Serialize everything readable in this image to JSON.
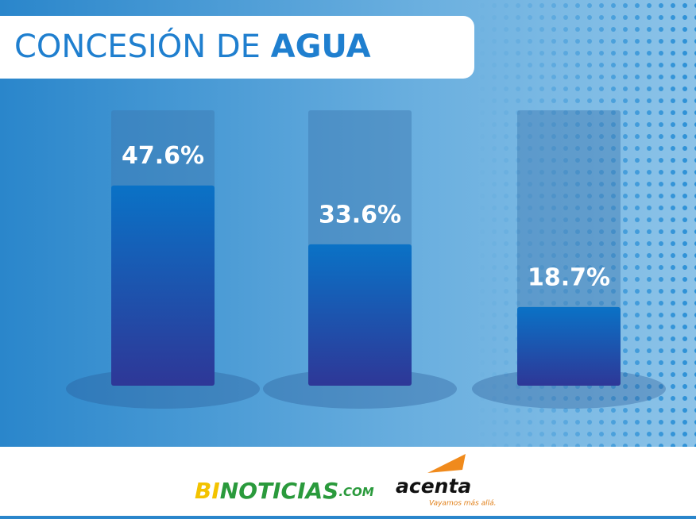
{
  "chart_data": {
    "type": "bar",
    "title_parts": [
      "CONCESIÓN DE",
      "AGUA"
    ],
    "values": [
      47.6,
      33.6,
      18.7
    ],
    "value_labels": [
      "47.6%",
      "33.6%",
      "18.7%"
    ],
    "color_top": "#0a72c6",
    "color_bottom": "#2e3797"
  },
  "footer": {
    "logo_1": [
      "BI",
      "NOTICIAS",
      ".COM"
    ],
    "logo_2": "acenta",
    "logo_2_tagline": "Vayamos más allá."
  }
}
